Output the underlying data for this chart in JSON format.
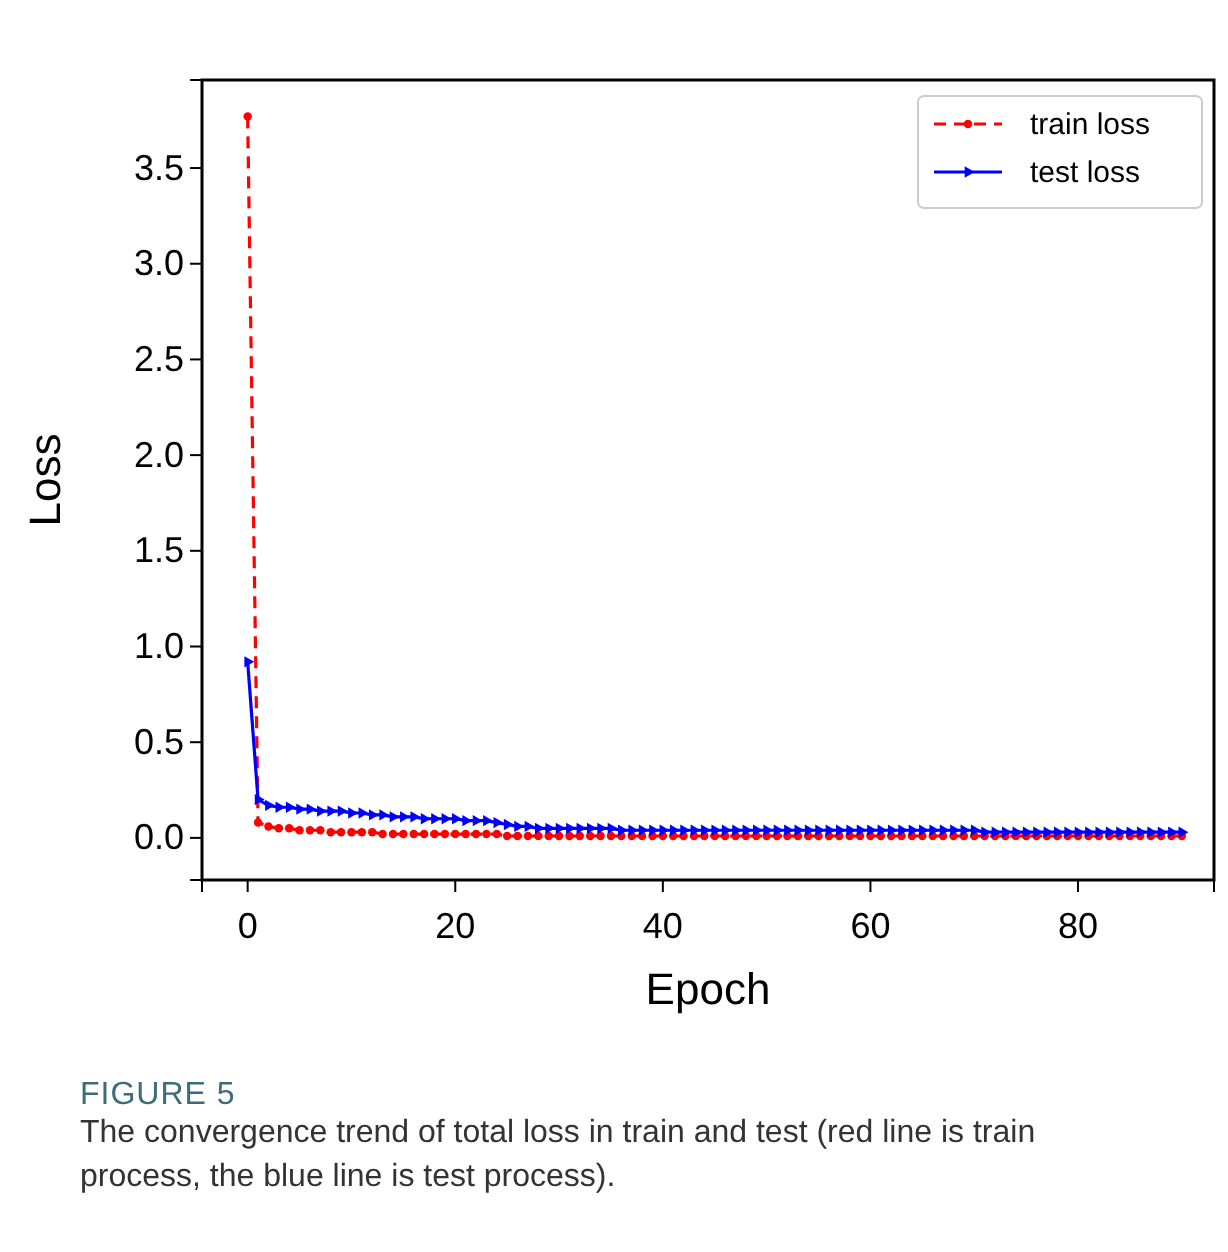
{
  "chart_data": {
    "type": "line",
    "xlabel": "Epoch",
    "ylabel": "Loss",
    "x": [
      0,
      1,
      2,
      3,
      4,
      5,
      6,
      7,
      8,
      9,
      10,
      11,
      12,
      13,
      14,
      15,
      16,
      17,
      18,
      19,
      20,
      21,
      22,
      23,
      24,
      25,
      26,
      27,
      28,
      29,
      30,
      31,
      32,
      33,
      34,
      35,
      36,
      37,
      38,
      39,
      40,
      41,
      42,
      43,
      44,
      45,
      46,
      47,
      48,
      49,
      50,
      51,
      52,
      53,
      54,
      55,
      56,
      57,
      58,
      59,
      60,
      61,
      62,
      63,
      64,
      65,
      66,
      67,
      68,
      69,
      70,
      71,
      72,
      73,
      74,
      75,
      76,
      77,
      78,
      79,
      80,
      81,
      82,
      83,
      84,
      85,
      86,
      87,
      88,
      89,
      90
    ],
    "series": [
      {
        "name": "train loss",
        "color": "#ff0000",
        "line_style": "dashed",
        "marker": "circle",
        "values": [
          3.77,
          0.08,
          0.06,
          0.05,
          0.05,
          0.04,
          0.04,
          0.04,
          0.03,
          0.03,
          0.03,
          0.03,
          0.03,
          0.02,
          0.02,
          0.02,
          0.02,
          0.02,
          0.02,
          0.02,
          0.02,
          0.02,
          0.02,
          0.02,
          0.02,
          0.01,
          0.01,
          0.01,
          0.01,
          0.01,
          0.01,
          0.01,
          0.01,
          0.01,
          0.01,
          0.01,
          0.01,
          0.01,
          0.01,
          0.01,
          0.01,
          0.01,
          0.01,
          0.01,
          0.01,
          0.01,
          0.01,
          0.01,
          0.01,
          0.01,
          0.01,
          0.01,
          0.01,
          0.01,
          0.01,
          0.01,
          0.01,
          0.01,
          0.01,
          0.01,
          0.01,
          0.01,
          0.01,
          0.01,
          0.01,
          0.01,
          0.01,
          0.01,
          0.01,
          0.01,
          0.01,
          0.01,
          0.01,
          0.01,
          0.01,
          0.01,
          0.01,
          0.01,
          0.01,
          0.01,
          0.01,
          0.01,
          0.01,
          0.01,
          0.01,
          0.01,
          0.01,
          0.01,
          0.01,
          0.01,
          0.01
        ]
      },
      {
        "name": "test loss",
        "color": "#0000ff",
        "line_style": "solid",
        "marker": "triangle",
        "values": [
          0.92,
          0.2,
          0.17,
          0.16,
          0.16,
          0.15,
          0.15,
          0.14,
          0.14,
          0.14,
          0.13,
          0.13,
          0.12,
          0.12,
          0.11,
          0.11,
          0.11,
          0.1,
          0.1,
          0.1,
          0.1,
          0.09,
          0.09,
          0.09,
          0.08,
          0.07,
          0.06,
          0.06,
          0.05,
          0.05,
          0.05,
          0.05,
          0.05,
          0.05,
          0.05,
          0.05,
          0.04,
          0.04,
          0.04,
          0.04,
          0.04,
          0.04,
          0.04,
          0.04,
          0.04,
          0.04,
          0.04,
          0.04,
          0.04,
          0.04,
          0.04,
          0.04,
          0.04,
          0.04,
          0.04,
          0.04,
          0.04,
          0.04,
          0.04,
          0.04,
          0.04,
          0.04,
          0.04,
          0.04,
          0.04,
          0.04,
          0.04,
          0.04,
          0.04,
          0.04,
          0.04,
          0.03,
          0.03,
          0.03,
          0.03,
          0.03,
          0.03,
          0.03,
          0.03,
          0.03,
          0.03,
          0.03,
          0.03,
          0.03,
          0.03,
          0.03,
          0.03,
          0.03,
          0.03,
          0.03,
          0.03
        ]
      }
    ],
    "xlim": [
      -4.4,
      93.1
    ],
    "xticks": [
      0,
      20,
      40,
      60,
      80
    ],
    "ylim": [
      -0.22,
      3.96
    ],
    "yticks": [
      {
        "value": 0,
        "label": "0.0"
      },
      {
        "value": 0.5,
        "label": "0.5"
      },
      {
        "value": 1,
        "label": "1.0"
      },
      {
        "value": 1.5,
        "label": "1.5"
      },
      {
        "value": 2,
        "label": "2.0"
      },
      {
        "value": 2.5,
        "label": "2.5"
      },
      {
        "value": 3,
        "label": "3.0"
      },
      {
        "value": 3.5,
        "label": "3.5"
      }
    ],
    "legend": "top right",
    "grid": false,
    "annotations": [
      "FIGURE 5",
      "The convergence trend of total loss in train and test (red line is train process, the blue line is test process)."
    ]
  }
}
